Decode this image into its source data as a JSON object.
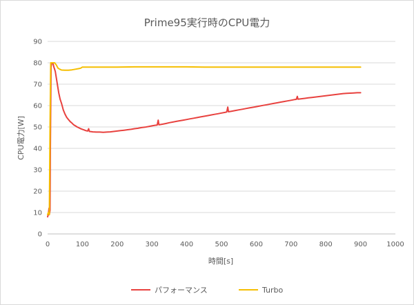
{
  "chart_data": {
    "type": "line",
    "title": "Prime95実行時のCPU電力",
    "xlabel": "時間[s]",
    "ylabel": "CPU電力[W]",
    "xlim": [
      0,
      1000
    ],
    "ylim": [
      0,
      90
    ],
    "xticks": [
      "0",
      "100",
      "200",
      "300",
      "400",
      "500",
      "600",
      "700",
      "800",
      "900",
      "1000"
    ],
    "yticks": [
      "0",
      "10",
      "20",
      "30",
      "40",
      "50",
      "60",
      "70",
      "80",
      "90"
    ],
    "grid": "horizontal",
    "legend_position": "bottom",
    "series": [
      {
        "name": "パフォーマンス",
        "color": "#e8413e",
        "points": [
          [
            0,
            8
          ],
          [
            2,
            9
          ],
          [
            4,
            12
          ],
          [
            5,
            9
          ],
          [
            7,
            11
          ],
          [
            8,
            40
          ],
          [
            10,
            78
          ],
          [
            12,
            80
          ],
          [
            15,
            80
          ],
          [
            18,
            78
          ],
          [
            20,
            77
          ],
          [
            22,
            76
          ],
          [
            25,
            73
          ],
          [
            28,
            70
          ],
          [
            32,
            66
          ],
          [
            36,
            63
          ],
          [
            40,
            61
          ],
          [
            45,
            58
          ],
          [
            50,
            56
          ],
          [
            55,
            54.5
          ],
          [
            60,
            53.5
          ],
          [
            65,
            52.5
          ],
          [
            70,
            51.8
          ],
          [
            75,
            51
          ],
          [
            80,
            50.5
          ],
          [
            85,
            50
          ],
          [
            90,
            49.6
          ],
          [
            95,
            49.2
          ],
          [
            100,
            48.9
          ],
          [
            105,
            48.6
          ],
          [
            110,
            48.3
          ],
          [
            115,
            48.1
          ],
          [
            118,
            49.2
          ],
          [
            120,
            47.9
          ],
          [
            125,
            47.8
          ],
          [
            130,
            47.7
          ],
          [
            140,
            47.6
          ],
          [
            150,
            47.6
          ],
          [
            160,
            47.5
          ],
          [
            170,
            47.6
          ],
          [
            180,
            47.7
          ],
          [
            190,
            47.9
          ],
          [
            200,
            48.1
          ],
          [
            210,
            48.3
          ],
          [
            220,
            48.5
          ],
          [
            230,
            48.7
          ],
          [
            240,
            48.9
          ],
          [
            250,
            49.2
          ],
          [
            260,
            49.4
          ],
          [
            270,
            49.7
          ],
          [
            280,
            49.9
          ],
          [
            290,
            50.2
          ],
          [
            300,
            50.5
          ],
          [
            310,
            50.8
          ],
          [
            315,
            50.9
          ],
          [
            318,
            53.2
          ],
          [
            320,
            51.0
          ],
          [
            330,
            51.3
          ],
          [
            340,
            51.6
          ],
          [
            350,
            52.0
          ],
          [
            360,
            52.3
          ],
          [
            370,
            52.6
          ],
          [
            380,
            52.9
          ],
          [
            390,
            53.2
          ],
          [
            400,
            53.5
          ],
          [
            410,
            53.8
          ],
          [
            420,
            54.1
          ],
          [
            430,
            54.4
          ],
          [
            440,
            54.7
          ],
          [
            450,
            55.0
          ],
          [
            460,
            55.3
          ],
          [
            470,
            55.6
          ],
          [
            480,
            55.9
          ],
          [
            490,
            56.2
          ],
          [
            500,
            56.5
          ],
          [
            510,
            56.8
          ],
          [
            515,
            57.0
          ],
          [
            518,
            59.3
          ],
          [
            520,
            57.1
          ],
          [
            530,
            57.4
          ],
          [
            540,
            57.7
          ],
          [
            550,
            58.0
          ],
          [
            560,
            58.3
          ],
          [
            570,
            58.6
          ],
          [
            580,
            58.9
          ],
          [
            590,
            59.2
          ],
          [
            600,
            59.5
          ],
          [
            610,
            59.8
          ],
          [
            620,
            60.1
          ],
          [
            630,
            60.4
          ],
          [
            640,
            60.7
          ],
          [
            650,
            61.0
          ],
          [
            660,
            61.3
          ],
          [
            670,
            61.6
          ],
          [
            680,
            61.9
          ],
          [
            690,
            62.2
          ],
          [
            700,
            62.5
          ],
          [
            710,
            62.8
          ],
          [
            715,
            62.9
          ],
          [
            718,
            64.3
          ],
          [
            720,
            63.0
          ],
          [
            730,
            63.2
          ],
          [
            740,
            63.4
          ],
          [
            750,
            63.6
          ],
          [
            760,
            63.8
          ],
          [
            770,
            64.0
          ],
          [
            780,
            64.2
          ],
          [
            790,
            64.4
          ],
          [
            800,
            64.6
          ],
          [
            810,
            64.8
          ],
          [
            820,
            65.0
          ],
          [
            830,
            65.2
          ],
          [
            840,
            65.4
          ],
          [
            850,
            65.6
          ],
          [
            860,
            65.7
          ],
          [
            870,
            65.8
          ],
          [
            880,
            65.9
          ],
          [
            890,
            66.0
          ],
          [
            900,
            66.0
          ]
        ]
      },
      {
        "name": "Turbo",
        "color": "#f5be00",
        "points": [
          [
            0,
            9
          ],
          [
            2,
            10
          ],
          [
            4,
            10
          ],
          [
            5,
            9
          ],
          [
            7,
            50
          ],
          [
            9,
            80
          ],
          [
            12,
            80
          ],
          [
            16,
            80
          ],
          [
            20,
            80
          ],
          [
            25,
            79
          ],
          [
            30,
            77.5
          ],
          [
            35,
            77
          ],
          [
            40,
            76.6
          ],
          [
            50,
            76.5
          ],
          [
            60,
            76.5
          ],
          [
            70,
            76.7
          ],
          [
            80,
            77
          ],
          [
            90,
            77.3
          ],
          [
            95,
            77.5
          ],
          [
            100,
            78
          ],
          [
            110,
            78
          ],
          [
            120,
            78
          ],
          [
            150,
            78
          ],
          [
            200,
            78
          ],
          [
            250,
            78.1
          ],
          [
            300,
            78.1
          ],
          [
            350,
            78.1
          ],
          [
            400,
            78.1
          ],
          [
            450,
            78
          ],
          [
            500,
            78
          ],
          [
            550,
            78
          ],
          [
            600,
            78
          ],
          [
            650,
            78
          ],
          [
            700,
            78
          ],
          [
            750,
            78
          ],
          [
            800,
            78
          ],
          [
            850,
            78
          ],
          [
            900,
            78
          ]
        ]
      }
    ]
  }
}
